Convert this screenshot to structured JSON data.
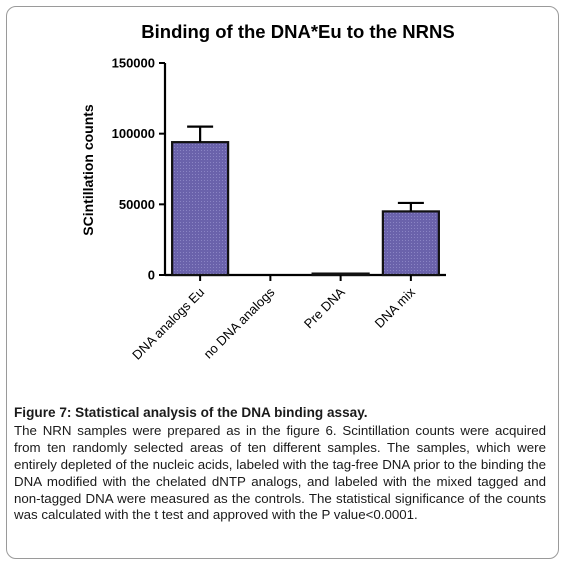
{
  "chart_data": {
    "type": "bar",
    "title": "Binding  of the  DNA*Eu to the NRNS",
    "ylabel": "SCintillation counts",
    "xlabel": "",
    "categories": [
      "DNA  analogs Eu",
      "no DNA  analogs",
      "Pre  DNA",
      "DNA mix"
    ],
    "values": [
      94000,
      0,
      1000,
      45000
    ],
    "errors": [
      11000,
      0,
      0,
      6000
    ],
    "ylim": [
      0,
      150000
    ],
    "yticks": [
      0,
      50000,
      100000,
      150000
    ],
    "ytick_labels": [
      "0",
      "50000",
      "100000",
      "150000"
    ],
    "grid": false,
    "bar_color": "#6a62ab",
    "bar_edge_color": "#111111"
  },
  "caption": {
    "title": "Figure 7: Statistical analysis of the DNA binding assay.",
    "text": "The NRN samples were prepared as in the figure 6. Scintillation counts were acquired from ten randomly selected areas of ten different samples. The samples, which were entirely depleted of the nucleic acids, labeled with the tag-free DNA prior to the binding the DNA modified with the chelated dNTP analogs, and labeled with the mixed tagged and non-tagged DNA were measured as the controls. The statistical significance of the counts was calculated with the t test and approved with the P value<0.0001."
  }
}
